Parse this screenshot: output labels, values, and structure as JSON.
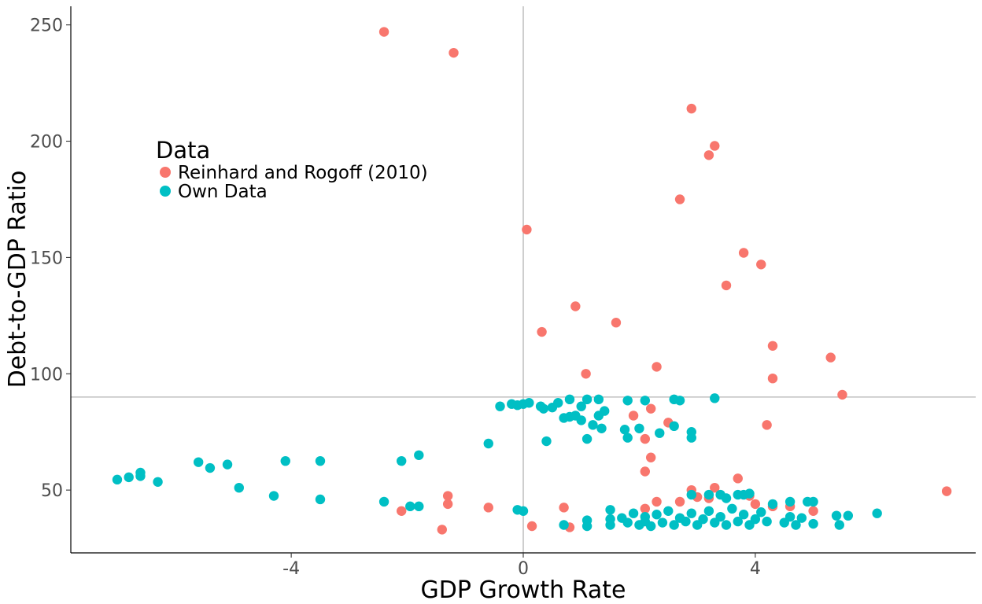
{
  "chart_data": {
    "type": "scatter",
    "xlabel": "GDP Growth Rate",
    "ylabel": "Debt-to-GDP Ratio",
    "xlim": [
      -7.8,
      7.8
    ],
    "ylim": [
      23,
      258
    ],
    "x_ticks": [
      -4,
      0,
      4
    ],
    "x_tick_labels": [
      "-4",
      "0",
      "4"
    ],
    "y_ticks": [
      50,
      100,
      150,
      200,
      250
    ],
    "y_tick_labels": [
      "50",
      "100",
      "150",
      "200",
      "250"
    ],
    "reference_lines": {
      "vertical_x": 0,
      "horizontal_y": 90
    },
    "grid": false,
    "legend": {
      "title": "Data",
      "position": "top-left inside",
      "entries": [
        "Reinhard and Rogoff (2010)",
        "Own Data"
      ]
    },
    "series": [
      {
        "name": "Reinhard and Rogoff (2010)",
        "color": "#F8766D",
        "points": [
          [
            -2.4,
            247
          ],
          [
            -1.2,
            238
          ],
          [
            2.9,
            214
          ],
          [
            3.3,
            198
          ],
          [
            3.2,
            194
          ],
          [
            2.7,
            175
          ],
          [
            0.06,
            162
          ],
          [
            3.8,
            152
          ],
          [
            4.1,
            147
          ],
          [
            3.5,
            138
          ],
          [
            0.9,
            129
          ],
          [
            1.6,
            122
          ],
          [
            0.32,
            118
          ],
          [
            4.3,
            112
          ],
          [
            5.3,
            107
          ],
          [
            2.3,
            103
          ],
          [
            1.08,
            100
          ],
          [
            4.3,
            98
          ],
          [
            5.5,
            91
          ],
          [
            2.2,
            85
          ],
          [
            1.9,
            82
          ],
          [
            2.5,
            79
          ],
          [
            4.2,
            78
          ],
          [
            2.1,
            72
          ],
          [
            2.2,
            64
          ],
          [
            2.1,
            58
          ],
          [
            3.7,
            55
          ],
          [
            3.3,
            51
          ],
          [
            2.9,
            50
          ],
          [
            3.9,
            47.5
          ],
          [
            7.3,
            49.5
          ],
          [
            -1.3,
            47.5
          ],
          [
            2.3,
            45
          ],
          [
            2.7,
            45
          ],
          [
            3.2,
            46.5
          ],
          [
            3.0,
            47
          ],
          [
            -1.3,
            44
          ],
          [
            4.0,
            44
          ],
          [
            4.3,
            43
          ],
          [
            4.6,
            43
          ],
          [
            5.0,
            41
          ],
          [
            -0.6,
            42.5
          ],
          [
            0.7,
            42.5
          ],
          [
            2.1,
            42
          ],
          [
            -2.1,
            41
          ],
          [
            0.15,
            34.5
          ],
          [
            0.8,
            34
          ],
          [
            -1.4,
            33
          ]
        ]
      },
      {
        "name": "Own Data",
        "color": "#00BFC4",
        "points": [
          [
            -7.0,
            54.5
          ],
          [
            -6.8,
            55.5
          ],
          [
            -6.6,
            57.5
          ],
          [
            -6.6,
            56
          ],
          [
            -6.3,
            53.5
          ],
          [
            -5.6,
            62
          ],
          [
            -5.4,
            59.5
          ],
          [
            -5.1,
            61
          ],
          [
            -4.9,
            51
          ],
          [
            -4.3,
            47.5
          ],
          [
            -4.1,
            62.5
          ],
          [
            -3.5,
            46
          ],
          [
            -3.5,
            62.5
          ],
          [
            -2.4,
            45
          ],
          [
            -2.1,
            62.5
          ],
          [
            -1.8,
            65
          ],
          [
            -1.95,
            43
          ],
          [
            -1.8,
            43
          ],
          [
            -0.6,
            70
          ],
          [
            -0.4,
            86
          ],
          [
            -0.2,
            87
          ],
          [
            -0.1,
            86.5
          ],
          [
            0.0,
            87
          ],
          [
            0.1,
            87.5
          ],
          [
            -0.1,
            41.5
          ],
          [
            0.0,
            41
          ],
          [
            0.3,
            86
          ],
          [
            0.35,
            85
          ],
          [
            0.5,
            85.5
          ],
          [
            0.6,
            87.5
          ],
          [
            0.4,
            71
          ],
          [
            0.7,
            81
          ],
          [
            0.8,
            81.5
          ],
          [
            0.9,
            82
          ],
          [
            1.0,
            80
          ],
          [
            0.8,
            89
          ],
          [
            1.0,
            86
          ],
          [
            1.1,
            89
          ],
          [
            1.2,
            78
          ],
          [
            1.3,
            82
          ],
          [
            1.4,
            84
          ],
          [
            1.35,
            76.5
          ],
          [
            1.3,
            89
          ],
          [
            1.1,
            72
          ],
          [
            0.7,
            35
          ],
          [
            1.1,
            37
          ],
          [
            1.1,
            34.5
          ],
          [
            1.8,
            88.5
          ],
          [
            2.1,
            88.5
          ],
          [
            2.6,
            89
          ],
          [
            2.7,
            88.5
          ],
          [
            3.3,
            89.5
          ],
          [
            1.75,
            76
          ],
          [
            1.8,
            72.5
          ],
          [
            2.0,
            76.5
          ],
          [
            2.35,
            74.5
          ],
          [
            2.6,
            77.5
          ],
          [
            2.9,
            75
          ],
          [
            2.9,
            72.5
          ],
          [
            1.5,
            41.5
          ],
          [
            1.5,
            37.5
          ],
          [
            1.5,
            35
          ],
          [
            1.7,
            38
          ],
          [
            1.8,
            36
          ],
          [
            1.9,
            40
          ],
          [
            2.0,
            35
          ],
          [
            2.1,
            36.5
          ],
          [
            2.1,
            38.5
          ],
          [
            2.2,
            34.5
          ],
          [
            2.3,
            39.5
          ],
          [
            2.4,
            36
          ],
          [
            2.5,
            41
          ],
          [
            2.6,
            35
          ],
          [
            2.7,
            38
          ],
          [
            2.8,
            36.5
          ],
          [
            2.9,
            40
          ],
          [
            3.0,
            35
          ],
          [
            3.1,
            37.5
          ],
          [
            3.2,
            41
          ],
          [
            3.3,
            36
          ],
          [
            3.4,
            38.5
          ],
          [
            3.5,
            35
          ],
          [
            3.6,
            42
          ],
          [
            3.7,
            36.5
          ],
          [
            3.8,
            39.5
          ],
          [
            3.9,
            35
          ],
          [
            4.0,
            37.5
          ],
          [
            4.1,
            40.5
          ],
          [
            4.2,
            36.5
          ],
          [
            4.3,
            44
          ],
          [
            4.5,
            36
          ],
          [
            4.6,
            38.5
          ],
          [
            4.7,
            35
          ],
          [
            4.8,
            38
          ],
          [
            4.9,
            45
          ],
          [
            4.6,
            45
          ],
          [
            5.0,
            35.5
          ],
          [
            5.0,
            45
          ],
          [
            2.9,
            48
          ],
          [
            3.2,
            48
          ],
          [
            3.4,
            48
          ],
          [
            3.5,
            46.5
          ],
          [
            3.7,
            48
          ],
          [
            3.8,
            48
          ],
          [
            3.9,
            48.5
          ],
          [
            5.4,
            39
          ],
          [
            5.6,
            39
          ],
          [
            5.45,
            35
          ],
          [
            6.1,
            40
          ]
        ]
      }
    ]
  }
}
